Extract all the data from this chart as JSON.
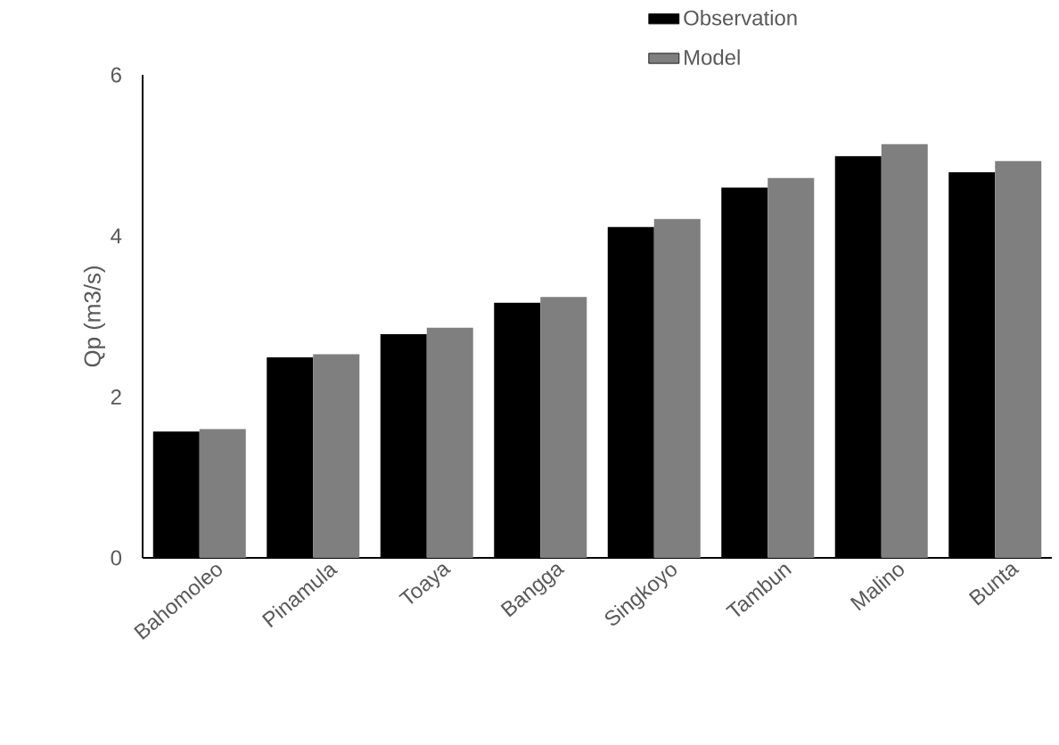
{
  "chart_data": {
    "type": "bar",
    "ylabel": "Qp (m3/s)",
    "categories": [
      "Bahomoleo",
      "Pinamula",
      "Toaya",
      "Bangga",
      "Singkoyo",
      "Tambun",
      "Malino",
      "Bunta"
    ],
    "series": [
      {
        "name": "Observation",
        "color": "#000000",
        "values": [
          1.57,
          2.49,
          2.78,
          3.17,
          4.11,
          4.6,
          4.99,
          4.79
        ]
      },
      {
        "name": "Model",
        "color": "#7f7f7f",
        "values": [
          1.6,
          2.53,
          2.86,
          3.24,
          4.21,
          4.72,
          5.14,
          4.93
        ]
      }
    ],
    "ylim": [
      0,
      6
    ],
    "yticks": [
      0,
      2,
      4,
      6
    ],
    "grid": false,
    "legend": "top right"
  }
}
